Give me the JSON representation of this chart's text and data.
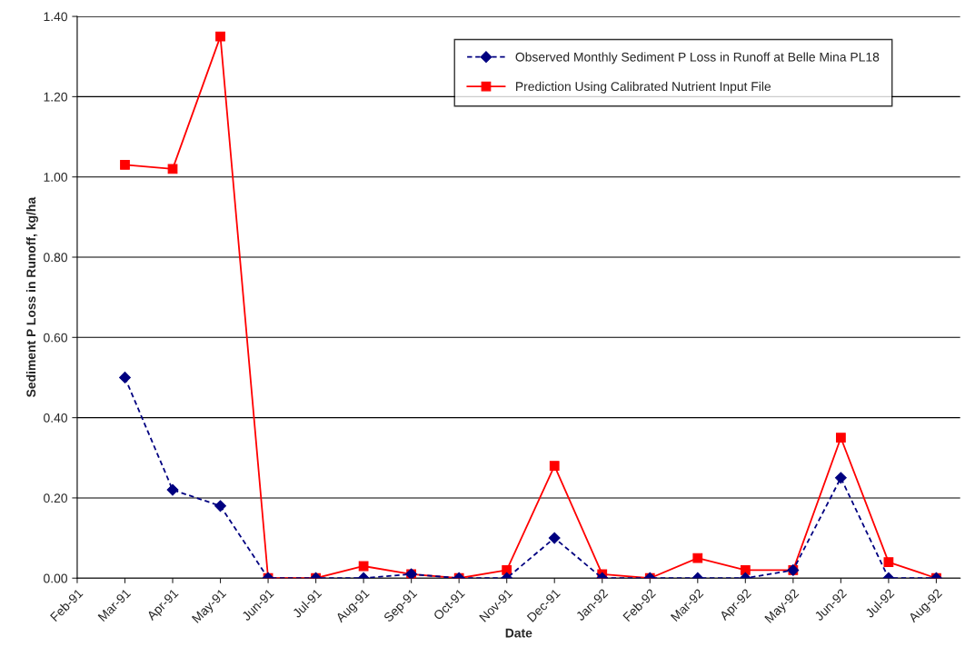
{
  "chart_data": {
    "type": "line",
    "xlabel": "Date",
    "ylabel": "Sediment P Loss in Runoff, kg/ha",
    "categories": [
      "Feb-91",
      "Mar-91",
      "Apr-91",
      "May-91",
      "Jun-91",
      "Jul-91",
      "Aug-91",
      "Sep-91",
      "Oct-91",
      "Nov-91",
      "Dec-91",
      "Jan-92",
      "Feb-92",
      "Mar-92",
      "Apr-92",
      "May-92",
      "Jun-92",
      "Jul-92",
      "Aug-92"
    ],
    "series": [
      {
        "name": "Observed Monthly Sediment P Loss in Runoff at Belle Mina PL18",
        "color": "#000080",
        "marker": "diamond",
        "line_style": "dashed",
        "values": [
          null,
          0.5,
          0.22,
          0.18,
          0.0,
          0.0,
          0.0,
          0.01,
          0.0,
          0.0,
          0.1,
          0.0,
          0.0,
          0.0,
          0.0,
          0.02,
          0.25,
          0.0,
          0.0
        ]
      },
      {
        "name": "Prediction Using Calibrated Nutrient Input File",
        "color": "#ff0000",
        "marker": "square",
        "line_style": "solid",
        "values": [
          null,
          1.03,
          1.02,
          1.35,
          0.0,
          0.0,
          0.03,
          0.01,
          0.0,
          0.02,
          0.28,
          0.01,
          0.0,
          0.05,
          0.02,
          0.02,
          0.35,
          0.04,
          0.0
        ]
      }
    ],
    "ylim": [
      0,
      1.4
    ],
    "yticks": [
      {
        "value": 0,
        "label": "0.00"
      },
      {
        "value": 0.2,
        "label": "0.20"
      },
      {
        "value": 0.4,
        "label": "0.40"
      },
      {
        "value": 0.6,
        "label": "0.60"
      },
      {
        "value": 0.8,
        "label": "0.80"
      },
      {
        "value": 1.0,
        "label": "1.00"
      },
      {
        "value": 1.2,
        "label": "1.20"
      },
      {
        "value": 1.4,
        "label": "1.40"
      }
    ],
    "grid": "y",
    "legend": "top right"
  }
}
